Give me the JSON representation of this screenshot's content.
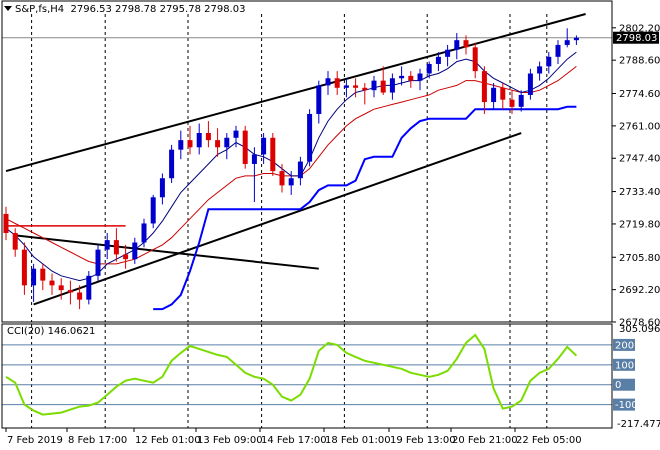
{
  "header": {
    "symbol": "S&P,fs,H4",
    "ohlc": "2796.53 2798.78 2795.78 2798.03"
  },
  "cci_header": {
    "label": "CCI(20) 146.0621"
  },
  "price_axis": {
    "ticks": [
      "2802.20",
      "2788.60",
      "2774.60",
      "2761.00",
      "2747.40",
      "2733.40",
      "2719.80",
      "2705.80",
      "2692.20",
      "2678.60"
    ],
    "current_price": "2798.03"
  },
  "cci_axis": {
    "top": "305.0968",
    "bottom": "-217.4775",
    "levels": [
      "200",
      "100",
      "0",
      "-100"
    ]
  },
  "time_axis": [
    "7 Feb 2019",
    "8 Feb 17:00",
    "12 Feb 01:00",
    "13 Feb 09:00",
    "14 Feb 17:00",
    "18 Feb 01:00",
    "19 Feb 13:00",
    "20 Feb 21:00",
    "22 Feb 05:00"
  ],
  "colors": {
    "bull": "#0000cc",
    "bear": "#dd0000",
    "ma_fast": "#000080",
    "ma_slow": "#cc0000",
    "stop_line": "#0000ff",
    "cci_line": "#7cdc00",
    "level_line": "#5a7fa6",
    "grid": "#000000"
  },
  "chart_data": [
    {
      "type": "candlestick",
      "title": "S&P,fs,H4",
      "ylim": [
        2678.6,
        2808.0
      ],
      "candles": [
        [
          2724,
          2727,
          2713,
          2716
        ],
        [
          2716,
          2718,
          2706,
          2709
        ],
        [
          2709,
          2712,
          2690,
          2694
        ],
        [
          2694,
          2703,
          2687,
          2701
        ],
        [
          2701,
          2703,
          2692,
          2696
        ],
        [
          2696,
          2699,
          2690,
          2694
        ],
        [
          2694,
          2697,
          2688,
          2692
        ],
        [
          2692,
          2696,
          2686,
          2691
        ],
        [
          2691,
          2694,
          2684,
          2688
        ],
        [
          2688,
          2700,
          2686,
          2698
        ],
        [
          2698,
          2711,
          2696,
          2709
        ],
        [
          2709,
          2716,
          2705,
          2713
        ],
        [
          2713,
          2718,
          2704,
          2707
        ],
        [
          2707,
          2711,
          2701,
          2705
        ],
        [
          2705,
          2714,
          2703,
          2712
        ],
        [
          2712,
          2722,
          2710,
          2720
        ],
        [
          2720,
          2732,
          2718,
          2731
        ],
        [
          2731,
          2741,
          2728,
          2739
        ],
        [
          2739,
          2753,
          2737,
          2751
        ],
        [
          2751,
          2759,
          2747,
          2755
        ],
        [
          2755,
          2761,
          2749,
          2752
        ],
        [
          2752,
          2762,
          2749,
          2758
        ],
        [
          2758,
          2763,
          2752,
          2755
        ],
        [
          2755,
          2760,
          2748,
          2752
        ],
        [
          2752,
          2758,
          2747,
          2756
        ],
        [
          2756,
          2761,
          2752,
          2759
        ],
        [
          2759,
          2761,
          2743,
          2745
        ],
        [
          2745,
          2752,
          2729,
          2749
        ],
        [
          2749,
          2758,
          2745,
          2756
        ],
        [
          2756,
          2758,
          2740,
          2742
        ],
        [
          2742,
          2745,
          2733,
          2736
        ],
        [
          2736,
          2742,
          2732,
          2739
        ],
        [
          2739,
          2748,
          2736,
          2746
        ],
        [
          2746,
          2768,
          2744,
          2766
        ],
        [
          2766,
          2780,
          2762,
          2778
        ],
        [
          2778,
          2784,
          2774,
          2781
        ],
        [
          2781,
          2784,
          2774,
          2777
        ],
        [
          2777,
          2781,
          2773,
          2778
        ],
        [
          2778,
          2781,
          2773,
          2777
        ],
        [
          2777,
          2779,
          2770,
          2776
        ],
        [
          2776,
          2782,
          2773,
          2780
        ],
        [
          2780,
          2786,
          2774,
          2775
        ],
        [
          2775,
          2783,
          2772,
          2781
        ],
        [
          2781,
          2786,
          2778,
          2782
        ],
        [
          2782,
          2784,
          2777,
          2780
        ],
        [
          2780,
          2785,
          2776,
          2783
        ],
        [
          2783,
          2788,
          2781,
          2787
        ],
        [
          2787,
          2792,
          2784,
          2790
        ],
        [
          2790,
          2795,
          2786,
          2793
        ],
        [
          2793,
          2800,
          2789,
          2797
        ],
        [
          2797,
          2799,
          2791,
          2794
        ],
        [
          2794,
          2796,
          2781,
          2784
        ],
        [
          2784,
          2786,
          2766,
          2771
        ],
        [
          2771,
          2779,
          2768,
          2777
        ],
        [
          2777,
          2779,
          2768,
          2772
        ],
        [
          2772,
          2776,
          2766,
          2769
        ],
        [
          2769,
          2776,
          2767,
          2774
        ],
        [
          2774,
          2785,
          2772,
          2783
        ],
        [
          2783,
          2788,
          2780,
          2786
        ],
        [
          2786,
          2792,
          2783,
          2790
        ],
        [
          2790,
          2797,
          2787,
          2795
        ],
        [
          2795,
          2802,
          2794,
          2797
        ],
        [
          2797,
          2799,
          2795,
          2798
        ]
      ],
      "ma_fast": [
        2718,
        2715,
        2711,
        2706,
        2703,
        2700,
        2698,
        2697,
        2696,
        2697,
        2699,
        2703,
        2705,
        2707,
        2709,
        2712,
        2716,
        2721,
        2727,
        2733,
        2737,
        2741,
        2745,
        2749,
        2751,
        2754,
        2752,
        2749,
        2748,
        2746,
        2743,
        2740,
        2740,
        2747,
        2756,
        2763,
        2768,
        2772,
        2775,
        2776,
        2777,
        2778,
        2778,
        2779,
        2780,
        2780,
        2782,
        2783,
        2785,
        2788,
        2789,
        2788,
        2784,
        2781,
        2779,
        2777,
        2775,
        2776,
        2778,
        2781,
        2785,
        2789,
        2792
      ],
      "ma_slow": [
        2722,
        2720,
        2718,
        2716,
        2714,
        2712,
        2710,
        2708,
        2706,
        2704,
        2703,
        2703,
        2703,
        2704,
        2705,
        2707,
        2709,
        2711,
        2714,
        2718,
        2722,
        2726,
        2730,
        2733,
        2736,
        2739,
        2740,
        2740,
        2741,
        2741,
        2740,
        2740,
        2740,
        2743,
        2748,
        2753,
        2757,
        2761,
        2764,
        2766,
        2768,
        2769,
        2770,
        2771,
        2772,
        2773,
        2774,
        2776,
        2777,
        2778,
        2780,
        2780,
        2779,
        2778,
        2777,
        2776,
        2775,
        2775,
        2776,
        2778,
        2780,
        2783,
        2786
      ],
      "stop_line": [
        null,
        null,
        null,
        null,
        null,
        null,
        null,
        null,
        null,
        null,
        null,
        null,
        null,
        null,
        null,
        null,
        2684,
        2684,
        2686,
        2690,
        2700,
        2712,
        2726,
        2726,
        2726,
        2726,
        2726,
        2726,
        2726,
        2726,
        2726,
        2726,
        2726,
        2729,
        2734,
        2736,
        2736,
        2736,
        2738,
        2747,
        2748,
        2748,
        2748,
        2756,
        2760,
        2763,
        2764,
        2764,
        2764,
        2764,
        2764,
        2768,
        2768,
        2768,
        2768,
        2768,
        2768,
        2768,
        2768,
        2768,
        2768,
        2769,
        2769
      ],
      "trendlines": [
        {
          "p1": [
            0,
            2742
          ],
          "p2": [
            63,
            2808
          ]
        },
        {
          "p1": [
            3,
            2686
          ],
          "p2": [
            56,
            2758
          ]
        },
        {
          "p1": [
            1,
            2715
          ],
          "p2": [
            34,
            2701
          ]
        },
        {
          "p1": [
            0,
            2719
          ],
          "p2": [
            13,
            2719
          ]
        }
      ]
    },
    {
      "type": "line",
      "title": "CCI(20) 146.0621",
      "ylim": [
        -217.4775,
        305.0968
      ],
      "reference_levels": [
        200,
        100,
        0,
        -100
      ],
      "values": [
        40,
        10,
        -100,
        -130,
        -150,
        -145,
        -140,
        -125,
        -110,
        -105,
        -90,
        -50,
        -10,
        20,
        30,
        20,
        10,
        40,
        120,
        160,
        195,
        180,
        165,
        150,
        140,
        100,
        60,
        40,
        30,
        0,
        -60,
        -80,
        -50,
        30,
        170,
        210,
        200,
        160,
        140,
        120,
        110,
        100,
        90,
        80,
        60,
        50,
        40,
        50,
        70,
        130,
        210,
        250,
        180,
        -20,
        -120,
        -110,
        -80,
        20,
        60,
        80,
        130,
        190,
        146
      ]
    }
  ]
}
